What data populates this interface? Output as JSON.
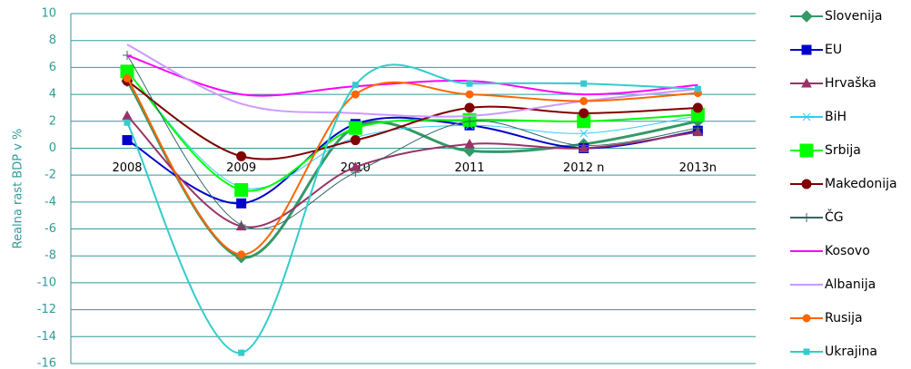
{
  "chart_data": {
    "type": "line",
    "y_label": "Realna rast BDP v %",
    "categories": [
      "2008",
      "2009",
      "2010",
      "2011",
      "2012 n",
      "2013n"
    ],
    "ylim": [
      -16,
      10
    ],
    "yticks": [
      -16,
      -14,
      -12,
      -10,
      -8,
      -6,
      -4,
      -2,
      0,
      2,
      4,
      6,
      8,
      10
    ],
    "grid": true,
    "series": [
      {
        "name": "Slovenija",
        "color": "#339966",
        "marker": "diamond",
        "values": [
          5.0,
          -8.1,
          1.6,
          -0.2,
          0.3,
          2.0
        ]
      },
      {
        "name": "EU",
        "color": "#0000cc",
        "marker": "square",
        "values": [
          0.6,
          -4.1,
          1.8,
          1.7,
          0.0,
          1.3
        ]
      },
      {
        "name": "Hrvaška",
        "color": "#993366",
        "marker": "triangle",
        "values": [
          2.4,
          -5.8,
          -1.4,
          0.3,
          0.0,
          1.2
        ]
      },
      {
        "name": "BiH",
        "color": "#33ccff",
        "marker": "x",
        "values": [
          5.7,
          -2.9,
          0.8,
          1.7,
          1.1,
          2.4
        ]
      },
      {
        "name": "Srbija",
        "color": "#00ff00",
        "marker": "bigsquare",
        "values": [
          5.7,
          -3.1,
          1.5,
          2.1,
          2.0,
          2.5
        ]
      },
      {
        "name": "Makedonija",
        "color": "#800000",
        "marker": "circle",
        "values": [
          5.0,
          -0.6,
          0.6,
          3.0,
          2.6,
          3.0
        ]
      },
      {
        "name": "ČG",
        "color": "#336666",
        "marker": "plus",
        "values": [
          6.9,
          -5.7,
          -1.8,
          2.0,
          0.2,
          1.5
        ]
      },
      {
        "name": "Kosovo",
        "color": "#ff00ff",
        "marker": "none",
        "values": [
          6.9,
          4.0,
          4.6,
          5.0,
          4.0,
          4.7
        ]
      },
      {
        "name": "Albanija",
        "color": "#cc99ff",
        "marker": "none",
        "values": [
          7.7,
          3.3,
          2.6,
          2.4,
          3.5,
          4.4
        ]
      },
      {
        "name": "Rusija",
        "color": "#ff6600",
        "marker": "smallcircle",
        "values": [
          5.2,
          -7.9,
          4.0,
          4.0,
          3.5,
          4.1
        ]
      },
      {
        "name": "Ukrajina",
        "color": "#33cccc",
        "marker": "smallsquare",
        "values": [
          1.9,
          -15.2,
          4.7,
          4.8,
          4.8,
          4.4
        ]
      }
    ]
  }
}
